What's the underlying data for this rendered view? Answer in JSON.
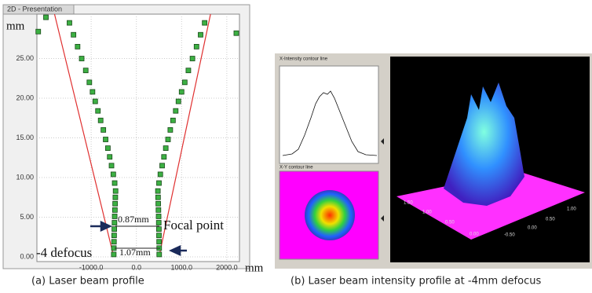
{
  "chart_data": {
    "type": "scatter",
    "panel_title": "2D - Presentation",
    "y_unit": "mm",
    "x_unit": "mm",
    "annotations": [
      "0.87mm",
      "Focal point",
      "1.07mm",
      "-4 defocus"
    ],
    "caption": "(a)  Laser beam profile",
    "xlim": [
      -2200,
      2280
    ],
    "ylim": [
      -0.6,
      30.6
    ],
    "xticks": [
      {
        "value": -1000,
        "label": "-1000.0"
      },
      {
        "value": 0,
        "label": "0.0"
      },
      {
        "value": 1000,
        "label": "1000.0"
      },
      {
        "value": 2000,
        "label": "2000.0"
      }
    ],
    "yticks": [
      {
        "value": 0,
        "label": "0.00"
      },
      {
        "value": 5,
        "label": "5.00"
      },
      {
        "value": 10,
        "label": "10.00"
      },
      {
        "value": 15,
        "label": "15.00"
      },
      {
        "value": 20,
        "label": "20.00"
      },
      {
        "value": 25,
        "label": "25.00"
      }
    ],
    "grid": true,
    "series": [
      {
        "mode": "line",
        "color": "#e03030",
        "x": [
          -500,
          -1810
        ],
        "values": [
          0,
          30.6
        ]
      },
      {
        "mode": "line",
        "color": "#e03030",
        "x": [
          500,
          1640
        ],
        "values": [
          0,
          30.6
        ]
      },
      {
        "mode": "markers",
        "color": "#3cb043",
        "x": [
          -500,
          -498,
          -495,
          -492,
          -488,
          -484,
          -480,
          -475,
          -470,
          -465,
          -460,
          -480,
          -510,
          -550,
          -590,
          -630,
          -680,
          -730,
          -790,
          -850,
          -910,
          -970,
          -1040,
          -1120,
          -1210,
          -1300,
          -1390,
          -1480
        ],
        "values": [
          0.3,
          1.1,
          1.9,
          2.7,
          3.5,
          4.3,
          5.1,
          5.9,
          6.7,
          7.5,
          8.3,
          9.3,
          10.4,
          11.5,
          12.6,
          13.7,
          14.8,
          16.0,
          17.2,
          18.4,
          19.6,
          20.8,
          22.0,
          23.5,
          25.0,
          26.5,
          28.0,
          29.5
        ]
      },
      {
        "mode": "markers",
        "color": "#3cb043",
        "x": [
          505,
          505,
          503,
          500,
          498,
          495,
          492,
          488,
          484,
          480,
          476,
          500,
          530,
          570,
          610,
          650,
          700,
          750,
          810,
          870,
          930,
          1000,
          1070,
          1150,
          1240,
          1330,
          1420,
          1510
        ],
        "values": [
          0.3,
          1.1,
          1.9,
          2.7,
          3.5,
          4.3,
          5.1,
          5.9,
          6.7,
          7.5,
          8.3,
          9.3,
          10.4,
          11.5,
          12.6,
          13.7,
          14.8,
          16.0,
          17.2,
          18.4,
          19.6,
          20.8,
          22.0,
          23.5,
          25.0,
          26.5,
          28.0,
          29.5
        ]
      },
      {
        "mode": "markers",
        "color": "#3cb043",
        "x": [
          -2170,
          -2000,
          2210
        ],
        "values": [
          28.4,
          30.2,
          28.2
        ]
      }
    ]
  },
  "right_panel": {
    "x_contour_title": "X-Intensity contour line",
    "xy_contour_title": "X-Y contour line",
    "axis_labels_left": [
      "1.50",
      "1.00",
      "0.50",
      "0.00"
    ],
    "axis_labels_right": [
      "1.00",
      "0.50",
      "0.00",
      "-0.50"
    ],
    "caption": "(b)  Laser beam intensity profile at -4mm defocus"
  }
}
